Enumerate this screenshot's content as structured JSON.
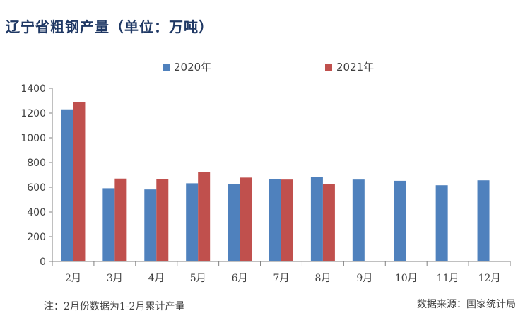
{
  "title": "辽宁省粗钢产量（单位：万吨）",
  "note": "注：2月份数据为1-2月累计产量",
  "source": "数据来源：国家统计局",
  "colors": {
    "title": "#1F3864",
    "series_2020": "#4F81BD",
    "series_2021": "#C0504D"
  },
  "chart_data": {
    "type": "bar",
    "categories": [
      "2月",
      "3月",
      "4月",
      "5月",
      "6月",
      "7月",
      "8月",
      "9月",
      "10月",
      "11月",
      "12月"
    ],
    "series": [
      {
        "name": "2020年",
        "color": "#4F81BD",
        "values": [
          1230,
          592,
          582,
          632,
          628,
          668,
          680,
          662,
          652,
          616,
          656
        ]
      },
      {
        "name": "2021年",
        "color": "#C0504D",
        "values": [
          1290,
          670,
          668,
          725,
          678,
          662,
          628,
          null,
          null,
          null,
          null
        ]
      }
    ],
    "ylim": [
      0,
      1400
    ],
    "yticks": [
      0,
      200,
      400,
      600,
      800,
      1000,
      1200,
      1400
    ],
    "grid": false,
    "legend": "top"
  }
}
